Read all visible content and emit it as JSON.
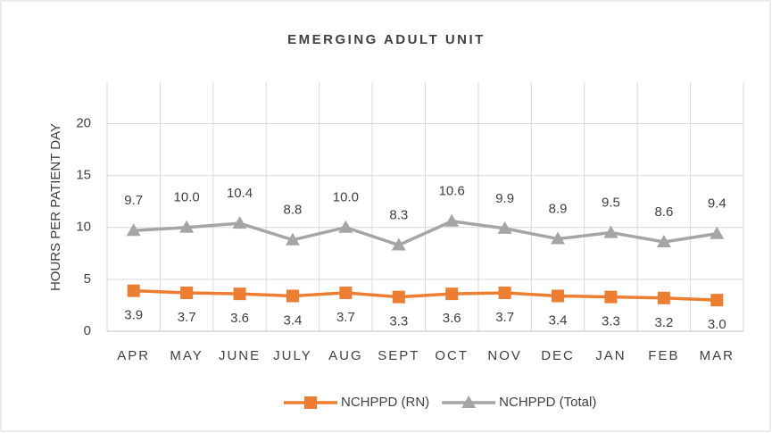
{
  "chart_data": {
    "type": "line",
    "title": "EMERGING ADULT UNIT",
    "y_label": "HOURS PER PATIENT DAY",
    "categories": [
      "APR",
      "MAY",
      "JUNE",
      "JULY",
      "AUG",
      "SEPT",
      "OCT",
      "NOV",
      "DEC",
      "JAN",
      "FEB",
      "MAR"
    ],
    "series": [
      {
        "name": "NCHPPD (RN)",
        "color": "#ed7d31",
        "marker": "square",
        "label_position": "below",
        "values": [
          3.9,
          3.7,
          3.6,
          3.4,
          3.7,
          3.3,
          3.6,
          3.7,
          3.4,
          3.3,
          3.2,
          3.0
        ],
        "value_labels": [
          "3.9",
          "3.7",
          "3.6",
          "3.4",
          "3.7",
          "3.3",
          "3.6",
          "3.7",
          "3.4",
          "3.3",
          "3.2",
          "3.0"
        ]
      },
      {
        "name": "NCHPPD (Total)",
        "color": "#a5a5a5",
        "marker": "triangle",
        "label_position": "above",
        "values": [
          9.7,
          10.0,
          10.4,
          8.8,
          10.0,
          8.3,
          10.6,
          9.9,
          8.9,
          9.5,
          8.6,
          9.4
        ],
        "value_labels": [
          "9.7",
          "10.0",
          "10.4",
          "8.8",
          "10.0",
          "8.3",
          "10.6",
          "9.9",
          "8.9",
          "9.5",
          "8.6",
          "9.4"
        ]
      }
    ],
    "ylim": [
      0,
      24
    ],
    "yticks": [
      0,
      5,
      10,
      15,
      20
    ],
    "grid": true,
    "legend": "bottom"
  }
}
